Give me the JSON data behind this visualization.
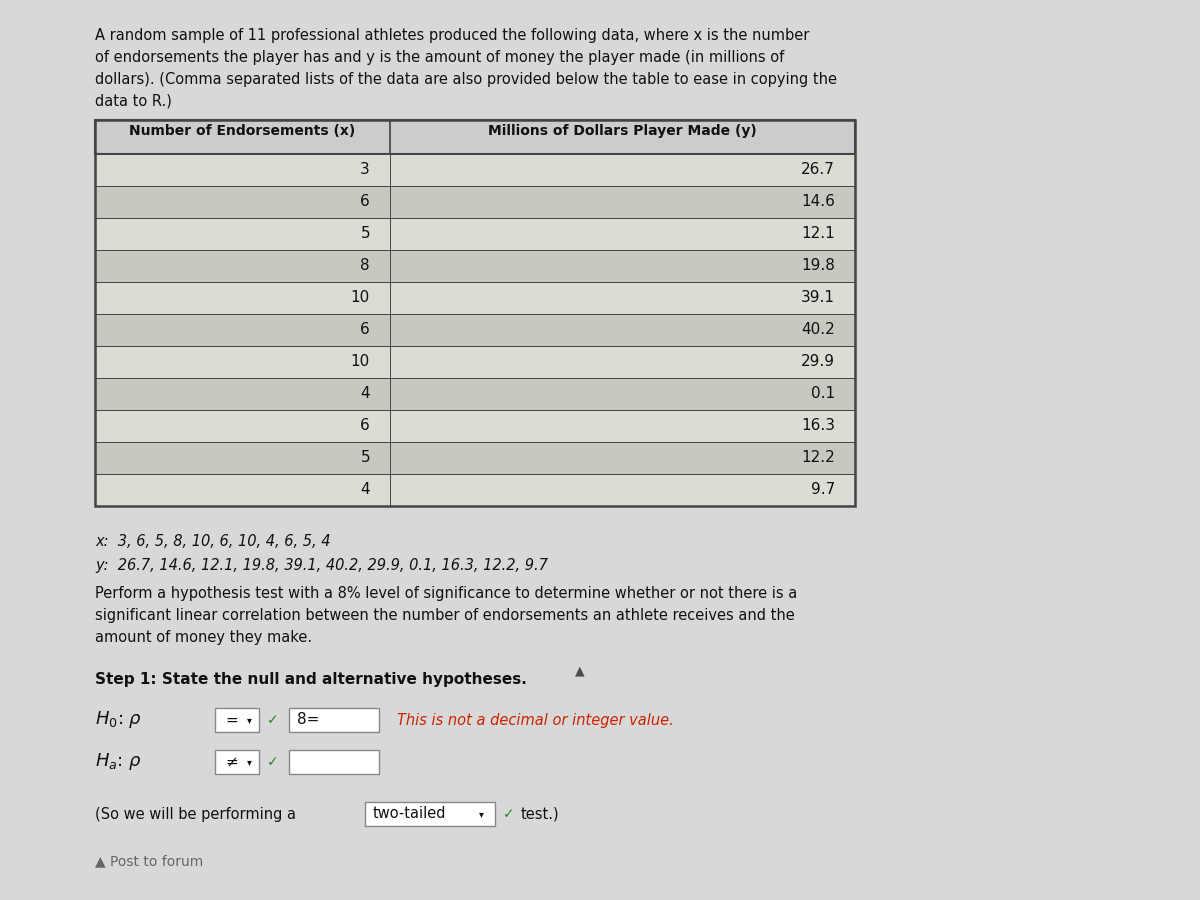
{
  "intro_lines": [
    "A random sample of 11 professional athletes produced the following data, where x is the number",
    "of endorsements the player has and y is the amount of money the player made (in millions of",
    "dollars). (Comma separated lists of the data are also provided below the table to ease in copying the",
    "data to R.)"
  ],
  "col1_header": "Number of Endorsements (x)",
  "col2_header": "Millions of Dollars Player Made (y)",
  "x_data": [
    3,
    6,
    5,
    8,
    10,
    6,
    10,
    4,
    6,
    5,
    4
  ],
  "y_data": [
    26.7,
    14.6,
    12.1,
    19.8,
    39.1,
    40.2,
    29.9,
    0.1,
    16.3,
    12.2,
    9.7
  ],
  "x_label_line": "x:  3, 6, 5, 8, 10, 6, 10, 4, 6, 5, 4",
  "y_label_line": "y:  26.7, 14.6, 12.1, 19.8, 39.1, 40.2, 29.9, 0.1, 16.3, 12.2, 9.7",
  "hyp_lines": [
    "Perform a hypothesis test with a 8% level of significance to determine whether or not there is a",
    "significant linear correlation between the number of endorsements an athlete receives and the",
    "amount of money they make."
  ],
  "step1_text": "Step 1: State the null and alternative hypotheses.",
  "h0_error": "This is not a decimal or integer value.",
  "two_tailed_prefix": "(So we will be performing a",
  "two_tailed_box": "two-tailed",
  "two_tailed_suffix": "test.)",
  "bg_color": "#d8d8d8",
  "paper_color": "#f0f0ec",
  "table_row_light": "#dcdcd4",
  "table_row_dark": "#c8c8c0",
  "header_bg": "#cccccc",
  "border_color": "#444444",
  "text_color": "#111111",
  "error_color": "#cc2200",
  "green_color": "#228822",
  "cursor_color": "#333333"
}
